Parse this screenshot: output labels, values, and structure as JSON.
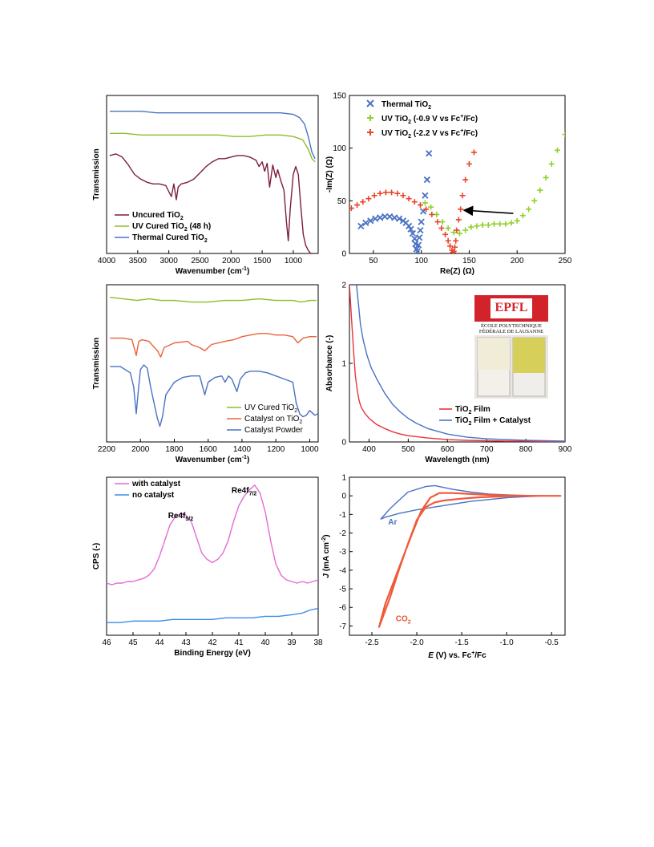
{
  "chart_data": [
    {
      "type": "line",
      "xlabel": "Wavenumber (cm⁻¹)",
      "ylabel": "Transmission",
      "xlim": [
        4000,
        600
      ],
      "x_ticks": [
        4000,
        3500,
        3000,
        2500,
        2000,
        1500,
        1000
      ],
      "legend_position": "bottom-left",
      "series": [
        {
          "name": "Uncured TiO₂",
          "color": "#7b1f3c",
          "x": [
            3950,
            3850,
            3750,
            3650,
            3550,
            3450,
            3350,
            3250,
            3150,
            3050,
            2960,
            2920,
            2880,
            2850,
            2800,
            2700,
            2600,
            2500,
            2400,
            2300,
            2200,
            2100,
            2000,
            1900,
            1800,
            1700,
            1600,
            1550,
            1500,
            1460,
            1420,
            1380,
            1330,
            1280,
            1250,
            1200,
            1150,
            1110,
            1080,
            1050,
            1000,
            960,
            920,
            880,
            840,
            800,
            760,
            720,
            680
          ],
          "y": [
            0.62,
            0.63,
            0.61,
            0.56,
            0.5,
            0.47,
            0.45,
            0.44,
            0.44,
            0.43,
            0.36,
            0.44,
            0.34,
            0.42,
            0.44,
            0.45,
            0.47,
            0.51,
            0.55,
            0.58,
            0.6,
            0.6,
            0.61,
            0.62,
            0.62,
            0.61,
            0.59,
            0.55,
            0.58,
            0.52,
            0.57,
            0.42,
            0.56,
            0.48,
            0.53,
            0.46,
            0.4,
            0.2,
            0.08,
            0.28,
            0.5,
            0.55,
            0.5,
            0.3,
            0.12,
            0.05,
            0.02,
            0.0,
            0.0
          ]
        },
        {
          "name": "UV Cured TiO₂ (48 h)",
          "color": "#8fbc2a",
          "x": [
            3950,
            3700,
            3450,
            3200,
            2950,
            2700,
            2450,
            2200,
            1950,
            1700,
            1450,
            1200,
            1000,
            850,
            760,
            700,
            650
          ],
          "y": [
            0.76,
            0.76,
            0.75,
            0.75,
            0.75,
            0.75,
            0.75,
            0.75,
            0.74,
            0.74,
            0.75,
            0.75,
            0.74,
            0.72,
            0.66,
            0.6,
            0.58
          ]
        },
        {
          "name": "Thermal Cured TiO₂",
          "color": "#4a72c4",
          "x": [
            3950,
            3700,
            3450,
            3200,
            2950,
            2700,
            2450,
            2200,
            1950,
            1700,
            1450,
            1200,
            1000,
            900,
            820,
            760,
            700,
            650
          ],
          "y": [
            0.9,
            0.9,
            0.9,
            0.89,
            0.89,
            0.89,
            0.89,
            0.89,
            0.89,
            0.89,
            0.89,
            0.89,
            0.88,
            0.86,
            0.82,
            0.74,
            0.64,
            0.6
          ]
        }
      ]
    },
    {
      "type": "scatter",
      "xlabel": "Re(Z) (Ω)",
      "ylabel": "-Im(Z) (Ω)",
      "xlim": [
        25,
        250
      ],
      "ylim": [
        0,
        150
      ],
      "x_ticks": [
        50,
        100,
        150,
        200,
        250
      ],
      "y_ticks": [
        0,
        50,
        100,
        150
      ],
      "legend_position": "top-left",
      "series": [
        {
          "name": "Thermal TiO₂",
          "color": "#4a72c4",
          "marker": "x",
          "x": [
            37,
            42,
            47,
            52,
            57,
            62,
            67,
            72,
            77,
            81,
            84,
            87,
            89,
            91,
            93,
            94,
            95,
            96,
            97,
            98,
            99,
            100,
            102,
            104,
            106,
            108
          ],
          "y": [
            26,
            29,
            31,
            33,
            34,
            35,
            35,
            34,
            33,
            31,
            29,
            26,
            23,
            19,
            14,
            9,
            4,
            2,
            8,
            15,
            22,
            30,
            40,
            55,
            70,
            95
          ]
        },
        {
          "name": "UV TiO₂ (-0.9 V vs Fc⁺/Fc)",
          "color": "#8fd12a",
          "marker": "+",
          "x": [
            104,
            110,
            116,
            122,
            128,
            134,
            140,
            146,
            152,
            158,
            164,
            170,
            176,
            182,
            188,
            194,
            200,
            206,
            212,
            218,
            224,
            230,
            236,
            242,
            250
          ],
          "y": [
            48,
            44,
            37,
            30,
            24,
            20,
            19,
            22,
            25,
            26,
            27,
            27,
            28,
            28,
            28,
            29,
            31,
            36,
            42,
            50,
            60,
            72,
            85,
            98,
            113
          ]
        },
        {
          "name": "UV TiO₂ (-2.2 V vs Fc⁺/Fc)",
          "color": "#e8452a",
          "marker": "+",
          "x": [
            27,
            33,
            39,
            45,
            51,
            57,
            63,
            69,
            75,
            81,
            87,
            93,
            99,
            105,
            111,
            117,
            121,
            125,
            128,
            130,
            132,
            133,
            134,
            135,
            136,
            137,
            139,
            141,
            143,
            146,
            150,
            155
          ],
          "y": [
            43,
            46,
            49,
            52,
            55,
            57,
            58,
            58,
            57,
            55,
            52,
            49,
            46,
            42,
            37,
            30,
            24,
            18,
            12,
            7,
            3,
            1,
            2,
            6,
            12,
            22,
            32,
            42,
            55,
            70,
            85,
            96
          ]
        }
      ]
    },
    {
      "type": "line",
      "xlabel": "Wavenumber (cm⁻¹)",
      "ylabel": "Transmission",
      "xlim": [
        2200,
        950
      ],
      "x_ticks": [
        2200,
        2000,
        1800,
        1600,
        1400,
        1200,
        1000
      ],
      "legend_position": "bottom-right",
      "series": [
        {
          "name": "UV Cured TiO₂",
          "color": "#8fbc2a",
          "x": [
            2180,
            2100,
            2020,
            1950,
            1880,
            1800,
            1700,
            1600,
            1500,
            1400,
            1300,
            1200,
            1100,
            1050,
            1000,
            960
          ],
          "y": [
            0.92,
            0.91,
            0.9,
            0.91,
            0.9,
            0.9,
            0.89,
            0.89,
            0.9,
            0.9,
            0.91,
            0.9,
            0.9,
            0.89,
            0.9,
            0.9
          ]
        },
        {
          "name": "Catalyst on TiO₂",
          "color": "#e8643a",
          "x": [
            2180,
            2100,
            2050,
            2025,
            2010,
            1990,
            1950,
            1900,
            1880,
            1860,
            1800,
            1720,
            1700,
            1650,
            1620,
            1580,
            1500,
            1450,
            1400,
            1350,
            1300,
            1250,
            1200,
            1150,
            1100,
            1070,
            1040,
            1000,
            960
          ],
          "y": [
            0.66,
            0.66,
            0.65,
            0.55,
            0.64,
            0.65,
            0.64,
            0.58,
            0.54,
            0.6,
            0.63,
            0.64,
            0.62,
            0.6,
            0.58,
            0.62,
            0.64,
            0.65,
            0.67,
            0.68,
            0.69,
            0.69,
            0.68,
            0.68,
            0.67,
            0.63,
            0.66,
            0.67,
            0.67
          ]
        },
        {
          "name": "Catalyst Powder",
          "color": "#4a72c4",
          "x": [
            2180,
            2120,
            2060,
            2040,
            2025,
            2015,
            2000,
            1980,
            1960,
            1940,
            1920,
            1900,
            1885,
            1870,
            1850,
            1800,
            1750,
            1700,
            1650,
            1620,
            1600,
            1560,
            1520,
            1500,
            1480,
            1460,
            1430,
            1410,
            1380,
            1350,
            1300,
            1250,
            1200,
            1150,
            1100,
            1080,
            1060,
            1040,
            1020,
            1000,
            970,
            950
          ],
          "y": [
            0.48,
            0.48,
            0.44,
            0.35,
            0.18,
            0.3,
            0.46,
            0.49,
            0.47,
            0.35,
            0.25,
            0.15,
            0.1,
            0.16,
            0.3,
            0.38,
            0.41,
            0.42,
            0.42,
            0.3,
            0.38,
            0.41,
            0.42,
            0.38,
            0.42,
            0.4,
            0.32,
            0.4,
            0.44,
            0.45,
            0.45,
            0.44,
            0.42,
            0.4,
            0.38,
            0.25,
            0.18,
            0.16,
            0.17,
            0.2,
            0.17,
            0.18
          ]
        }
      ]
    },
    {
      "type": "line",
      "xlabel": "Wavelength (nm)",
      "ylabel": "Absorbance (-)",
      "xlim": [
        350,
        900
      ],
      "ylim": [
        0,
        2
      ],
      "x_ticks": [
        400,
        500,
        600,
        700,
        800,
        900
      ],
      "y_ticks": [
        0,
        1,
        2
      ],
      "legend_position": "bottom-right",
      "inset_logo_text": [
        "ÉCOLE POLYTECHNIQUE",
        "FÉDÉRALE DE LAUSANNE"
      ],
      "series": [
        {
          "name": "TiO₂ Film",
          "color": "#e8333a",
          "x": [
            350,
            355,
            360,
            365,
            370,
            375,
            380,
            390,
            400,
            420,
            440,
            460,
            480,
            500,
            550,
            600,
            650,
            700,
            750,
            800,
            850,
            900
          ],
          "y": [
            2.0,
            1.6,
            1.2,
            0.85,
            0.65,
            0.52,
            0.44,
            0.36,
            0.3,
            0.22,
            0.17,
            0.13,
            0.1,
            0.08,
            0.05,
            0.03,
            0.02,
            0.015,
            0.01,
            0.01,
            0.005,
            0.005
          ]
        },
        {
          "name": "TiO₂ Film + Catalyst",
          "color": "#4a72c4",
          "x": [
            368,
            372,
            378,
            385,
            395,
            405,
            420,
            440,
            460,
            480,
            500,
            520,
            550,
            600,
            650,
            700,
            750,
            800,
            850,
            900
          ],
          "y": [
            2.0,
            1.8,
            1.5,
            1.3,
            1.1,
            0.95,
            0.8,
            0.62,
            0.48,
            0.38,
            0.3,
            0.24,
            0.17,
            0.1,
            0.06,
            0.04,
            0.03,
            0.02,
            0.015,
            0.01
          ]
        }
      ]
    },
    {
      "type": "line",
      "xlabel": "Binding Energy (eV)",
      "ylabel": "CPS (-)",
      "xlim": [
        46,
        38
      ],
      "x_ticks": [
        46,
        45,
        44,
        43,
        42,
        41,
        40,
        39,
        38
      ],
      "legend_position": "top-left",
      "annotations": [
        {
          "text": "Re4f",
          "sub": "5/2",
          "x": 43.2,
          "y": 0.74
        },
        {
          "text": "Re4f",
          "sub": "7/2",
          "x": 40.8,
          "y": 0.9
        }
      ],
      "series": [
        {
          "name": "with catalyst",
          "color": "#e56ad4",
          "x": [
            46,
            45.8,
            45.6,
            45.4,
            45.2,
            45,
            44.8,
            44.6,
            44.4,
            44.2,
            44,
            43.8,
            43.6,
            43.4,
            43.2,
            43.0,
            42.8,
            42.6,
            42.4,
            42.2,
            42,
            41.8,
            41.6,
            41.4,
            41.2,
            41,
            40.8,
            40.6,
            40.4,
            40.2,
            40,
            39.8,
            39.6,
            39.4,
            39.2,
            39,
            38.8,
            38.6,
            38.4,
            38.2,
            38
          ],
          "y": [
            0.33,
            0.32,
            0.33,
            0.33,
            0.34,
            0.34,
            0.35,
            0.36,
            0.38,
            0.42,
            0.5,
            0.6,
            0.7,
            0.75,
            0.77,
            0.76,
            0.72,
            0.62,
            0.52,
            0.48,
            0.46,
            0.48,
            0.52,
            0.6,
            0.72,
            0.82,
            0.88,
            0.92,
            0.95,
            0.9,
            0.78,
            0.6,
            0.45,
            0.38,
            0.35,
            0.34,
            0.33,
            0.34,
            0.33,
            0.34,
            0.35
          ]
        },
        {
          "name": "no catalyst",
          "color": "#3a8ee6",
          "x": [
            46,
            45.5,
            45,
            44.5,
            44,
            43.5,
            43,
            42.5,
            42,
            41.5,
            41,
            40.5,
            40,
            39.5,
            39,
            38.6,
            38.3,
            38
          ],
          "y": [
            0.08,
            0.08,
            0.09,
            0.09,
            0.09,
            0.1,
            0.1,
            0.1,
            0.1,
            0.11,
            0.11,
            0.11,
            0.12,
            0.12,
            0.13,
            0.14,
            0.16,
            0.17
          ]
        }
      ]
    },
    {
      "type": "line",
      "xlabel": "E (V) vs. Fc⁺/Fc",
      "ylabel": "J (mA cm⁻²)",
      "xlim": [
        -2.75,
        -0.35
      ],
      "ylim": [
        -7.5,
        1
      ],
      "x_ticks": [
        -2.5,
        -2.0,
        -1.5,
        -1.0,
        -0.5
      ],
      "y_ticks": [
        1,
        0,
        -1,
        -2,
        -3,
        -4,
        -5,
        -6,
        -7
      ],
      "annotations": [
        {
          "text": "Ar",
          "color": "#4a72c4",
          "x": -2.27,
          "y": -1.55
        },
        {
          "text": "CO₂",
          "color": "#e8553a",
          "x": -2.15,
          "y": -6.75
        }
      ],
      "series": [
        {
          "name": "Ar",
          "color": "#4a72c4",
          "x": [
            -0.4,
            -0.6,
            -0.8,
            -1.0,
            -1.2,
            -1.4,
            -1.6,
            -1.8,
            -2.0,
            -2.2,
            -2.35,
            -2.4,
            -2.3,
            -2.1,
            -1.9,
            -1.8,
            -1.6,
            -1.4,
            -1.2,
            -1.0,
            -0.8,
            -0.6,
            -0.4
          ],
          "y": [
            0.0,
            0.0,
            -0.05,
            -0.1,
            -0.2,
            -0.3,
            -0.45,
            -0.6,
            -0.75,
            -0.95,
            -1.15,
            -1.25,
            -0.7,
            0.2,
            0.5,
            0.55,
            0.35,
            0.2,
            0.1,
            0.05,
            0.02,
            0.0,
            0.0
          ]
        },
        {
          "name": "CO₂",
          "color": "#f05a3a",
          "x": [
            -0.4,
            -0.7,
            -1.0,
            -1.3,
            -1.5,
            -1.7,
            -1.8,
            -1.9,
            -2.0,
            -2.1,
            -2.2,
            -2.3,
            -2.42,
            -2.35,
            -2.2,
            -2.05,
            -1.95,
            -1.85,
            -1.75,
            -1.6,
            -1.4,
            -1.2,
            -1.0,
            -0.7,
            -0.4
          ],
          "y": [
            0.0,
            0.0,
            -0.02,
            -0.08,
            -0.15,
            -0.25,
            -0.35,
            -0.6,
            -1.3,
            -2.6,
            -4.0,
            -5.5,
            -7.05,
            -5.8,
            -3.9,
            -2.0,
            -0.8,
            -0.1,
            0.15,
            0.15,
            0.1,
            0.05,
            0.02,
            0.0,
            0.0
          ]
        }
      ]
    }
  ]
}
